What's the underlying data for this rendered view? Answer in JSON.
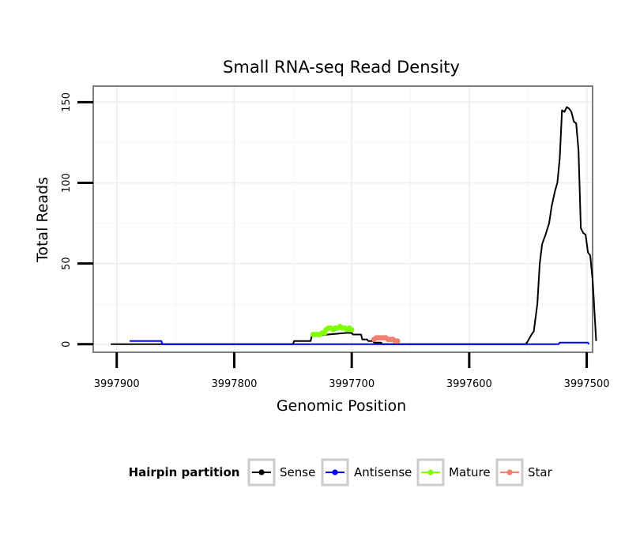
{
  "chart_data": {
    "type": "line",
    "title": "Small RNA-seq Read Density",
    "xlabel": "Genomic Position",
    "ylabel": "Total Reads",
    "xlim": [
      3997920,
      3997495
    ],
    "ylim": [
      -5,
      160
    ],
    "x_reversed": true,
    "x_ticks": [
      3997900,
      3997800,
      3997700,
      3997600,
      3997500
    ],
    "x_tick_labels": [
      "3997900",
      "3997800",
      "3997700",
      "3997600",
      "3997500"
    ],
    "y_ticks": [
      0,
      50,
      100,
      150
    ],
    "y_tick_labels": [
      "0",
      "50",
      "100",
      "150"
    ],
    "grid": true,
    "legend": {
      "title": "Hairpin partition",
      "placement": "bottom",
      "entries": [
        "Sense",
        "Antisense",
        "Mature",
        "Star"
      ]
    },
    "series": [
      {
        "name": "Sense",
        "color": "#000000",
        "style": "line",
        "points": [
          [
            3997905,
            0
          ],
          [
            3997750,
            0
          ],
          [
            3997749,
            2
          ],
          [
            3997735,
            2
          ],
          [
            3997734,
            5
          ],
          [
            3997720,
            6
          ],
          [
            3997705,
            7
          ],
          [
            3997700,
            7
          ],
          [
            3997699,
            6
          ],
          [
            3997692,
            6
          ],
          [
            3997691,
            3
          ],
          [
            3997687,
            3
          ],
          [
            3997686,
            2
          ],
          [
            3997682,
            2
          ],
          [
            3997681,
            1
          ],
          [
            3997675,
            1
          ],
          [
            3997674,
            0
          ],
          [
            3997552,
            0
          ],
          [
            3997550,
            2
          ],
          [
            3997547,
            6
          ],
          [
            3997545,
            8
          ],
          [
            3997542,
            25
          ],
          [
            3997540,
            50
          ],
          [
            3997538,
            62
          ],
          [
            3997535,
            68
          ],
          [
            3997532,
            75
          ],
          [
            3997530,
            85
          ],
          [
            3997527,
            95
          ],
          [
            3997525,
            100
          ],
          [
            3997523,
            115
          ],
          [
            3997521,
            145
          ],
          [
            3997519,
            144
          ],
          [
            3997517,
            147
          ],
          [
            3997515,
            146
          ],
          [
            3997513,
            144
          ],
          [
            3997511,
            138
          ],
          [
            3997509,
            137
          ],
          [
            3997507,
            120
          ],
          [
            3997505,
            72
          ],
          [
            3997503,
            69
          ],
          [
            3997501,
            68
          ],
          [
            3997499,
            57
          ],
          [
            3997497,
            55
          ],
          [
            3997495,
            40
          ],
          [
            3997494,
            28
          ],
          [
            3997493,
            15
          ],
          [
            3997492,
            2
          ]
        ]
      },
      {
        "name": "Antisense",
        "color": "#0000ff",
        "style": "line",
        "points": [
          [
            3997889,
            2
          ],
          [
            3997862,
            2
          ],
          [
            3997861,
            0
          ],
          [
            3997650,
            0
          ],
          [
            3997649,
            0
          ],
          [
            3997549,
            0
          ],
          [
            3997548,
            0
          ],
          [
            3997524,
            0
          ],
          [
            3997523,
            1
          ],
          [
            3997499,
            1
          ],
          [
            3997498,
            0
          ]
        ]
      },
      {
        "name": "Mature",
        "color": "#7fff00",
        "style": "points",
        "points": [
          [
            3997733,
            6
          ],
          [
            3997731,
            6
          ],
          [
            3997729,
            6
          ],
          [
            3997727,
            6
          ],
          [
            3997725,
            7
          ],
          [
            3997723,
            7
          ],
          [
            3997722,
            9
          ],
          [
            3997720,
            10
          ],
          [
            3997718,
            10
          ],
          [
            3997716,
            9
          ],
          [
            3997714,
            10
          ],
          [
            3997712,
            10
          ],
          [
            3997710,
            11
          ],
          [
            3997708,
            10
          ],
          [
            3997706,
            10
          ],
          [
            3997704,
            9
          ],
          [
            3997702,
            10
          ],
          [
            3997700,
            9
          ]
        ]
      },
      {
        "name": "Star",
        "color": "#f08070",
        "style": "points",
        "points": [
          [
            3997681,
            3
          ],
          [
            3997679,
            4
          ],
          [
            3997677,
            4
          ],
          [
            3997675,
            4
          ],
          [
            3997673,
            4
          ],
          [
            3997671,
            4
          ],
          [
            3997669,
            3
          ],
          [
            3997667,
            3
          ],
          [
            3997665,
            3
          ],
          [
            3997663,
            2
          ],
          [
            3997661,
            2
          ]
        ]
      }
    ]
  }
}
